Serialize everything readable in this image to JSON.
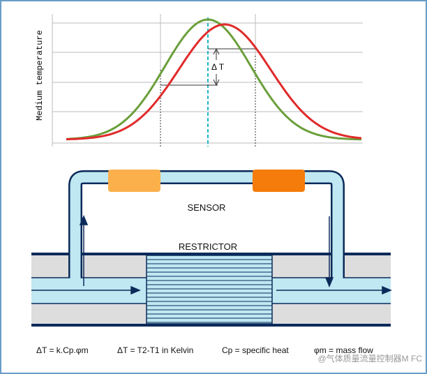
{
  "chart": {
    "y_axis_label": "Medium temperature",
    "delta_label": "Δ T"
  },
  "diagram": {
    "sensor_label": "SENSOR",
    "restrictor_label": "RESTRICTOR"
  },
  "formulas": [
    "ΔT = k.Cp.φm",
    "ΔT = T2-T1 in Kelvin",
    "Cp = specific heat",
    "φm = mass flow"
  ],
  "watermark": "@气体质量流量控制器M FC"
}
